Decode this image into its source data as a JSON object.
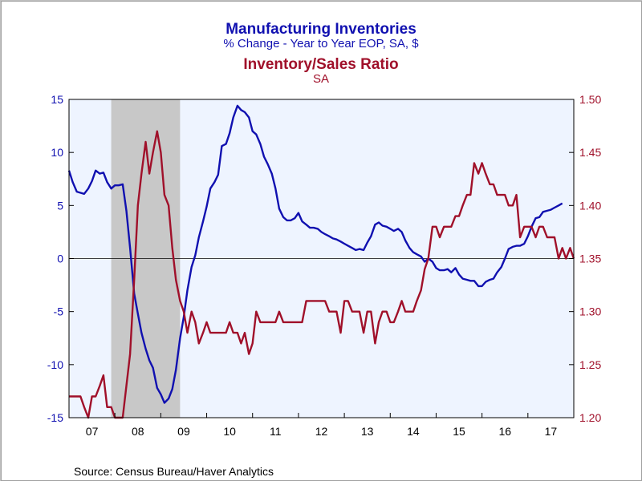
{
  "chart_data": {
    "type": "line",
    "title_left": "Manufacturing Inventories",
    "subtitle_left": "% Change - Year to Year     EOP, SA, $",
    "title_right": "Inventory/Sales Ratio",
    "subtitle_right": "SA",
    "source": "Source:  Census Bureau/Haver Analytics",
    "recession_shade": {
      "start": 2007.92,
      "end": 2009.42,
      "color": "#c8c8c8"
    },
    "x_range": [
      2007.0,
      2018.0
    ],
    "x_ticks": [
      {
        "label": "07",
        "at": 2007.5
      },
      {
        "label": "08",
        "at": 2008.5
      },
      {
        "label": "09",
        "at": 2009.5
      },
      {
        "label": "10",
        "at": 2010.5
      },
      {
        "label": "11",
        "at": 2011.5
      },
      {
        "label": "12",
        "at": 2012.5
      },
      {
        "label": "13",
        "at": 2013.5
      },
      {
        "label": "14",
        "at": 2014.5
      },
      {
        "label": "15",
        "at": 2015.5
      },
      {
        "label": "16",
        "at": 2016.5
      },
      {
        "label": "17",
        "at": 2017.5
      }
    ],
    "y_left": {
      "range": [
        -15,
        15
      ],
      "ticks": [
        "15",
        "10",
        "5",
        "0",
        "-5",
        "-10",
        "-15"
      ],
      "tick_values": [
        15,
        10,
        5,
        0,
        -5,
        -10,
        -15
      ]
    },
    "y_right": {
      "range": [
        1.2,
        1.5
      ],
      "ticks": [
        "1.50",
        "1.45",
        "1.40",
        "1.35",
        "1.30",
        "1.25",
        "1.20"
      ],
      "tick_values": [
        1.5,
        1.45,
        1.4,
        1.35,
        1.3,
        1.25,
        1.2
      ]
    },
    "zero_line": 0,
    "series": [
      {
        "axis": "left",
        "color": "#1010b0",
        "points": [
          [
            2007.0,
            8.3
          ],
          [
            2007.08,
            7.2
          ],
          [
            2007.17,
            6.3
          ],
          [
            2007.25,
            6.2
          ],
          [
            2007.33,
            6.1
          ],
          [
            2007.42,
            6.6
          ],
          [
            2007.5,
            7.3
          ],
          [
            2007.58,
            8.3
          ],
          [
            2007.67,
            8.0
          ],
          [
            2007.75,
            8.1
          ],
          [
            2007.83,
            7.2
          ],
          [
            2007.92,
            6.6
          ],
          [
            2008.0,
            6.9
          ],
          [
            2008.08,
            6.9
          ],
          [
            2008.17,
            7.0
          ],
          [
            2008.25,
            4.5
          ],
          [
            2008.33,
            1.0
          ],
          [
            2008.42,
            -3.3
          ],
          [
            2008.5,
            -5.2
          ],
          [
            2008.58,
            -7.0
          ],
          [
            2008.67,
            -8.5
          ],
          [
            2008.75,
            -9.6
          ],
          [
            2008.83,
            -10.3
          ],
          [
            2008.92,
            -12.2
          ],
          [
            2009.0,
            -12.8
          ],
          [
            2009.08,
            -13.6
          ],
          [
            2009.17,
            -13.2
          ],
          [
            2009.25,
            -12.3
          ],
          [
            2009.33,
            -10.5
          ],
          [
            2009.42,
            -7.5
          ],
          [
            2009.5,
            -5.5
          ],
          [
            2009.58,
            -3.0
          ],
          [
            2009.67,
            -0.8
          ],
          [
            2009.75,
            0.3
          ],
          [
            2009.83,
            2.0
          ],
          [
            2009.92,
            3.5
          ],
          [
            2010.0,
            4.9
          ],
          [
            2010.08,
            6.6
          ],
          [
            2010.17,
            7.2
          ],
          [
            2010.25,
            7.9
          ],
          [
            2010.33,
            10.6
          ],
          [
            2010.42,
            10.8
          ],
          [
            2010.5,
            11.8
          ],
          [
            2010.58,
            13.3
          ],
          [
            2010.67,
            14.4
          ],
          [
            2010.75,
            14.0
          ],
          [
            2010.83,
            13.8
          ],
          [
            2010.92,
            13.3
          ],
          [
            2011.0,
            12.0
          ],
          [
            2011.08,
            11.7
          ],
          [
            2011.17,
            10.8
          ],
          [
            2011.25,
            9.6
          ],
          [
            2011.33,
            8.9
          ],
          [
            2011.42,
            8.0
          ],
          [
            2011.5,
            6.6
          ],
          [
            2011.58,
            4.7
          ],
          [
            2011.67,
            3.9
          ],
          [
            2011.75,
            3.6
          ],
          [
            2011.83,
            3.6
          ],
          [
            2011.92,
            3.8
          ],
          [
            2012.0,
            4.3
          ],
          [
            2012.08,
            3.5
          ],
          [
            2012.17,
            3.2
          ],
          [
            2012.25,
            2.9
          ],
          [
            2012.33,
            2.9
          ],
          [
            2012.42,
            2.8
          ],
          [
            2012.5,
            2.5
          ],
          [
            2012.58,
            2.3
          ],
          [
            2012.67,
            2.1
          ],
          [
            2012.75,
            1.9
          ],
          [
            2012.83,
            1.8
          ],
          [
            2012.92,
            1.6
          ],
          [
            2013.0,
            1.4
          ],
          [
            2013.08,
            1.2
          ],
          [
            2013.17,
            1.0
          ],
          [
            2013.25,
            0.8
          ],
          [
            2013.33,
            0.9
          ],
          [
            2013.42,
            0.8
          ],
          [
            2013.5,
            1.5
          ],
          [
            2013.58,
            2.1
          ],
          [
            2013.67,
            3.2
          ],
          [
            2013.75,
            3.4
          ],
          [
            2013.83,
            3.1
          ],
          [
            2013.92,
            3.0
          ],
          [
            2014.0,
            2.8
          ],
          [
            2014.08,
            2.6
          ],
          [
            2014.17,
            2.8
          ],
          [
            2014.25,
            2.5
          ],
          [
            2014.33,
            1.7
          ],
          [
            2014.42,
            1.0
          ],
          [
            2014.5,
            0.6
          ],
          [
            2014.58,
            0.4
          ],
          [
            2014.67,
            0.2
          ],
          [
            2014.75,
            -0.3
          ],
          [
            2014.83,
            0.0
          ],
          [
            2014.92,
            -0.3
          ],
          [
            2015.0,
            -0.9
          ],
          [
            2015.08,
            -1.1
          ],
          [
            2015.17,
            -1.1
          ],
          [
            2015.25,
            -1.0
          ],
          [
            2015.33,
            -1.3
          ],
          [
            2015.42,
            -0.9
          ],
          [
            2015.5,
            -1.5
          ],
          [
            2015.58,
            -1.9
          ],
          [
            2015.67,
            -2.0
          ],
          [
            2015.75,
            -2.1
          ],
          [
            2015.83,
            -2.1
          ],
          [
            2015.92,
            -2.6
          ],
          [
            2016.0,
            -2.6
          ],
          [
            2016.08,
            -2.2
          ],
          [
            2016.17,
            -2.0
          ],
          [
            2016.25,
            -1.9
          ],
          [
            2016.33,
            -1.3
          ],
          [
            2016.42,
            -0.8
          ],
          [
            2016.5,
            0.0
          ],
          [
            2016.58,
            0.9
          ],
          [
            2016.67,
            1.1
          ],
          [
            2016.75,
            1.2
          ],
          [
            2016.83,
            1.2
          ],
          [
            2016.92,
            1.4
          ],
          [
            2017.0,
            2.1
          ],
          [
            2017.08,
            3.0
          ],
          [
            2017.17,
            3.8
          ],
          [
            2017.25,
            3.9
          ],
          [
            2017.33,
            4.4
          ],
          [
            2017.42,
            4.5
          ],
          [
            2017.5,
            4.6
          ],
          [
            2017.58,
            4.8
          ],
          [
            2017.67,
            5.0
          ],
          [
            2017.75,
            5.2
          ]
        ]
      },
      {
        "axis": "right",
        "color": "#a0102a",
        "points": [
          [
            2007.0,
            1.22
          ],
          [
            2007.08,
            1.22
          ],
          [
            2007.17,
            1.22
          ],
          [
            2007.25,
            1.22
          ],
          [
            2007.33,
            1.21
          ],
          [
            2007.42,
            1.2
          ],
          [
            2007.5,
            1.22
          ],
          [
            2007.58,
            1.22
          ],
          [
            2007.67,
            1.23
          ],
          [
            2007.75,
            1.24
          ],
          [
            2007.83,
            1.21
          ],
          [
            2007.92,
            1.21
          ],
          [
            2008.0,
            1.2
          ],
          [
            2008.08,
            1.2
          ],
          [
            2008.17,
            1.2
          ],
          [
            2008.25,
            1.23
          ],
          [
            2008.33,
            1.26
          ],
          [
            2008.42,
            1.33
          ],
          [
            2008.5,
            1.4
          ],
          [
            2008.58,
            1.43
          ],
          [
            2008.67,
            1.46
          ],
          [
            2008.75,
            1.43
          ],
          [
            2008.83,
            1.45
          ],
          [
            2008.92,
            1.47
          ],
          [
            2009.0,
            1.45
          ],
          [
            2009.08,
            1.41
          ],
          [
            2009.17,
            1.4
          ],
          [
            2009.25,
            1.36
          ],
          [
            2009.33,
            1.33
          ],
          [
            2009.42,
            1.31
          ],
          [
            2009.5,
            1.3
          ],
          [
            2009.58,
            1.28
          ],
          [
            2009.67,
            1.3
          ],
          [
            2009.75,
            1.29
          ],
          [
            2009.83,
            1.27
          ],
          [
            2009.92,
            1.28
          ],
          [
            2010.0,
            1.29
          ],
          [
            2010.08,
            1.28
          ],
          [
            2010.17,
            1.28
          ],
          [
            2010.25,
            1.28
          ],
          [
            2010.33,
            1.28
          ],
          [
            2010.42,
            1.28
          ],
          [
            2010.5,
            1.29
          ],
          [
            2010.58,
            1.28
          ],
          [
            2010.67,
            1.28
          ],
          [
            2010.75,
            1.27
          ],
          [
            2010.83,
            1.28
          ],
          [
            2010.92,
            1.26
          ],
          [
            2011.0,
            1.27
          ],
          [
            2011.08,
            1.3
          ],
          [
            2011.17,
            1.29
          ],
          [
            2011.25,
            1.29
          ],
          [
            2011.33,
            1.29
          ],
          [
            2011.42,
            1.29
          ],
          [
            2011.5,
            1.29
          ],
          [
            2011.58,
            1.3
          ],
          [
            2011.67,
            1.29
          ],
          [
            2011.75,
            1.29
          ],
          [
            2011.83,
            1.29
          ],
          [
            2011.92,
            1.29
          ],
          [
            2012.0,
            1.29
          ],
          [
            2012.08,
            1.29
          ],
          [
            2012.17,
            1.31
          ],
          [
            2012.25,
            1.31
          ],
          [
            2012.33,
            1.31
          ],
          [
            2012.42,
            1.31
          ],
          [
            2012.5,
            1.31
          ],
          [
            2012.58,
            1.31
          ],
          [
            2012.67,
            1.3
          ],
          [
            2012.75,
            1.3
          ],
          [
            2012.83,
            1.3
          ],
          [
            2012.92,
            1.28
          ],
          [
            2013.0,
            1.31
          ],
          [
            2013.08,
            1.31
          ],
          [
            2013.17,
            1.3
          ],
          [
            2013.25,
            1.3
          ],
          [
            2013.33,
            1.3
          ],
          [
            2013.42,
            1.28
          ],
          [
            2013.5,
            1.3
          ],
          [
            2013.58,
            1.3
          ],
          [
            2013.67,
            1.27
          ],
          [
            2013.75,
            1.29
          ],
          [
            2013.83,
            1.3
          ],
          [
            2013.92,
            1.3
          ],
          [
            2014.0,
            1.29
          ],
          [
            2014.08,
            1.29
          ],
          [
            2014.17,
            1.3
          ],
          [
            2014.25,
            1.31
          ],
          [
            2014.33,
            1.3
          ],
          [
            2014.42,
            1.3
          ],
          [
            2014.5,
            1.3
          ],
          [
            2014.58,
            1.31
          ],
          [
            2014.67,
            1.32
          ],
          [
            2014.75,
            1.34
          ],
          [
            2014.83,
            1.35
          ],
          [
            2014.92,
            1.38
          ],
          [
            2015.0,
            1.38
          ],
          [
            2015.08,
            1.37
          ],
          [
            2015.17,
            1.38
          ],
          [
            2015.25,
            1.38
          ],
          [
            2015.33,
            1.38
          ],
          [
            2015.42,
            1.39
          ],
          [
            2015.5,
            1.39
          ],
          [
            2015.58,
            1.4
          ],
          [
            2015.67,
            1.41
          ],
          [
            2015.75,
            1.41
          ],
          [
            2015.83,
            1.44
          ],
          [
            2015.92,
            1.43
          ],
          [
            2016.0,
            1.44
          ],
          [
            2016.08,
            1.43
          ],
          [
            2016.17,
            1.42
          ],
          [
            2016.25,
            1.42
          ],
          [
            2016.33,
            1.41
          ],
          [
            2016.42,
            1.41
          ],
          [
            2016.5,
            1.41
          ],
          [
            2016.58,
            1.4
          ],
          [
            2016.67,
            1.4
          ],
          [
            2016.75,
            1.41
          ],
          [
            2016.83,
            1.37
          ],
          [
            2016.92,
            1.38
          ],
          [
            2017.0,
            1.38
          ],
          [
            2017.08,
            1.38
          ],
          [
            2017.17,
            1.37
          ],
          [
            2017.25,
            1.38
          ],
          [
            2017.33,
            1.38
          ],
          [
            2017.42,
            1.37
          ],
          [
            2017.5,
            1.37
          ],
          [
            2017.58,
            1.37
          ],
          [
            2017.67,
            1.35
          ],
          [
            2017.75,
            1.36
          ],
          [
            2017.83,
            1.35
          ],
          [
            2017.92,
            1.36
          ],
          [
            2018.0,
            1.35
          ]
        ]
      }
    ]
  }
}
